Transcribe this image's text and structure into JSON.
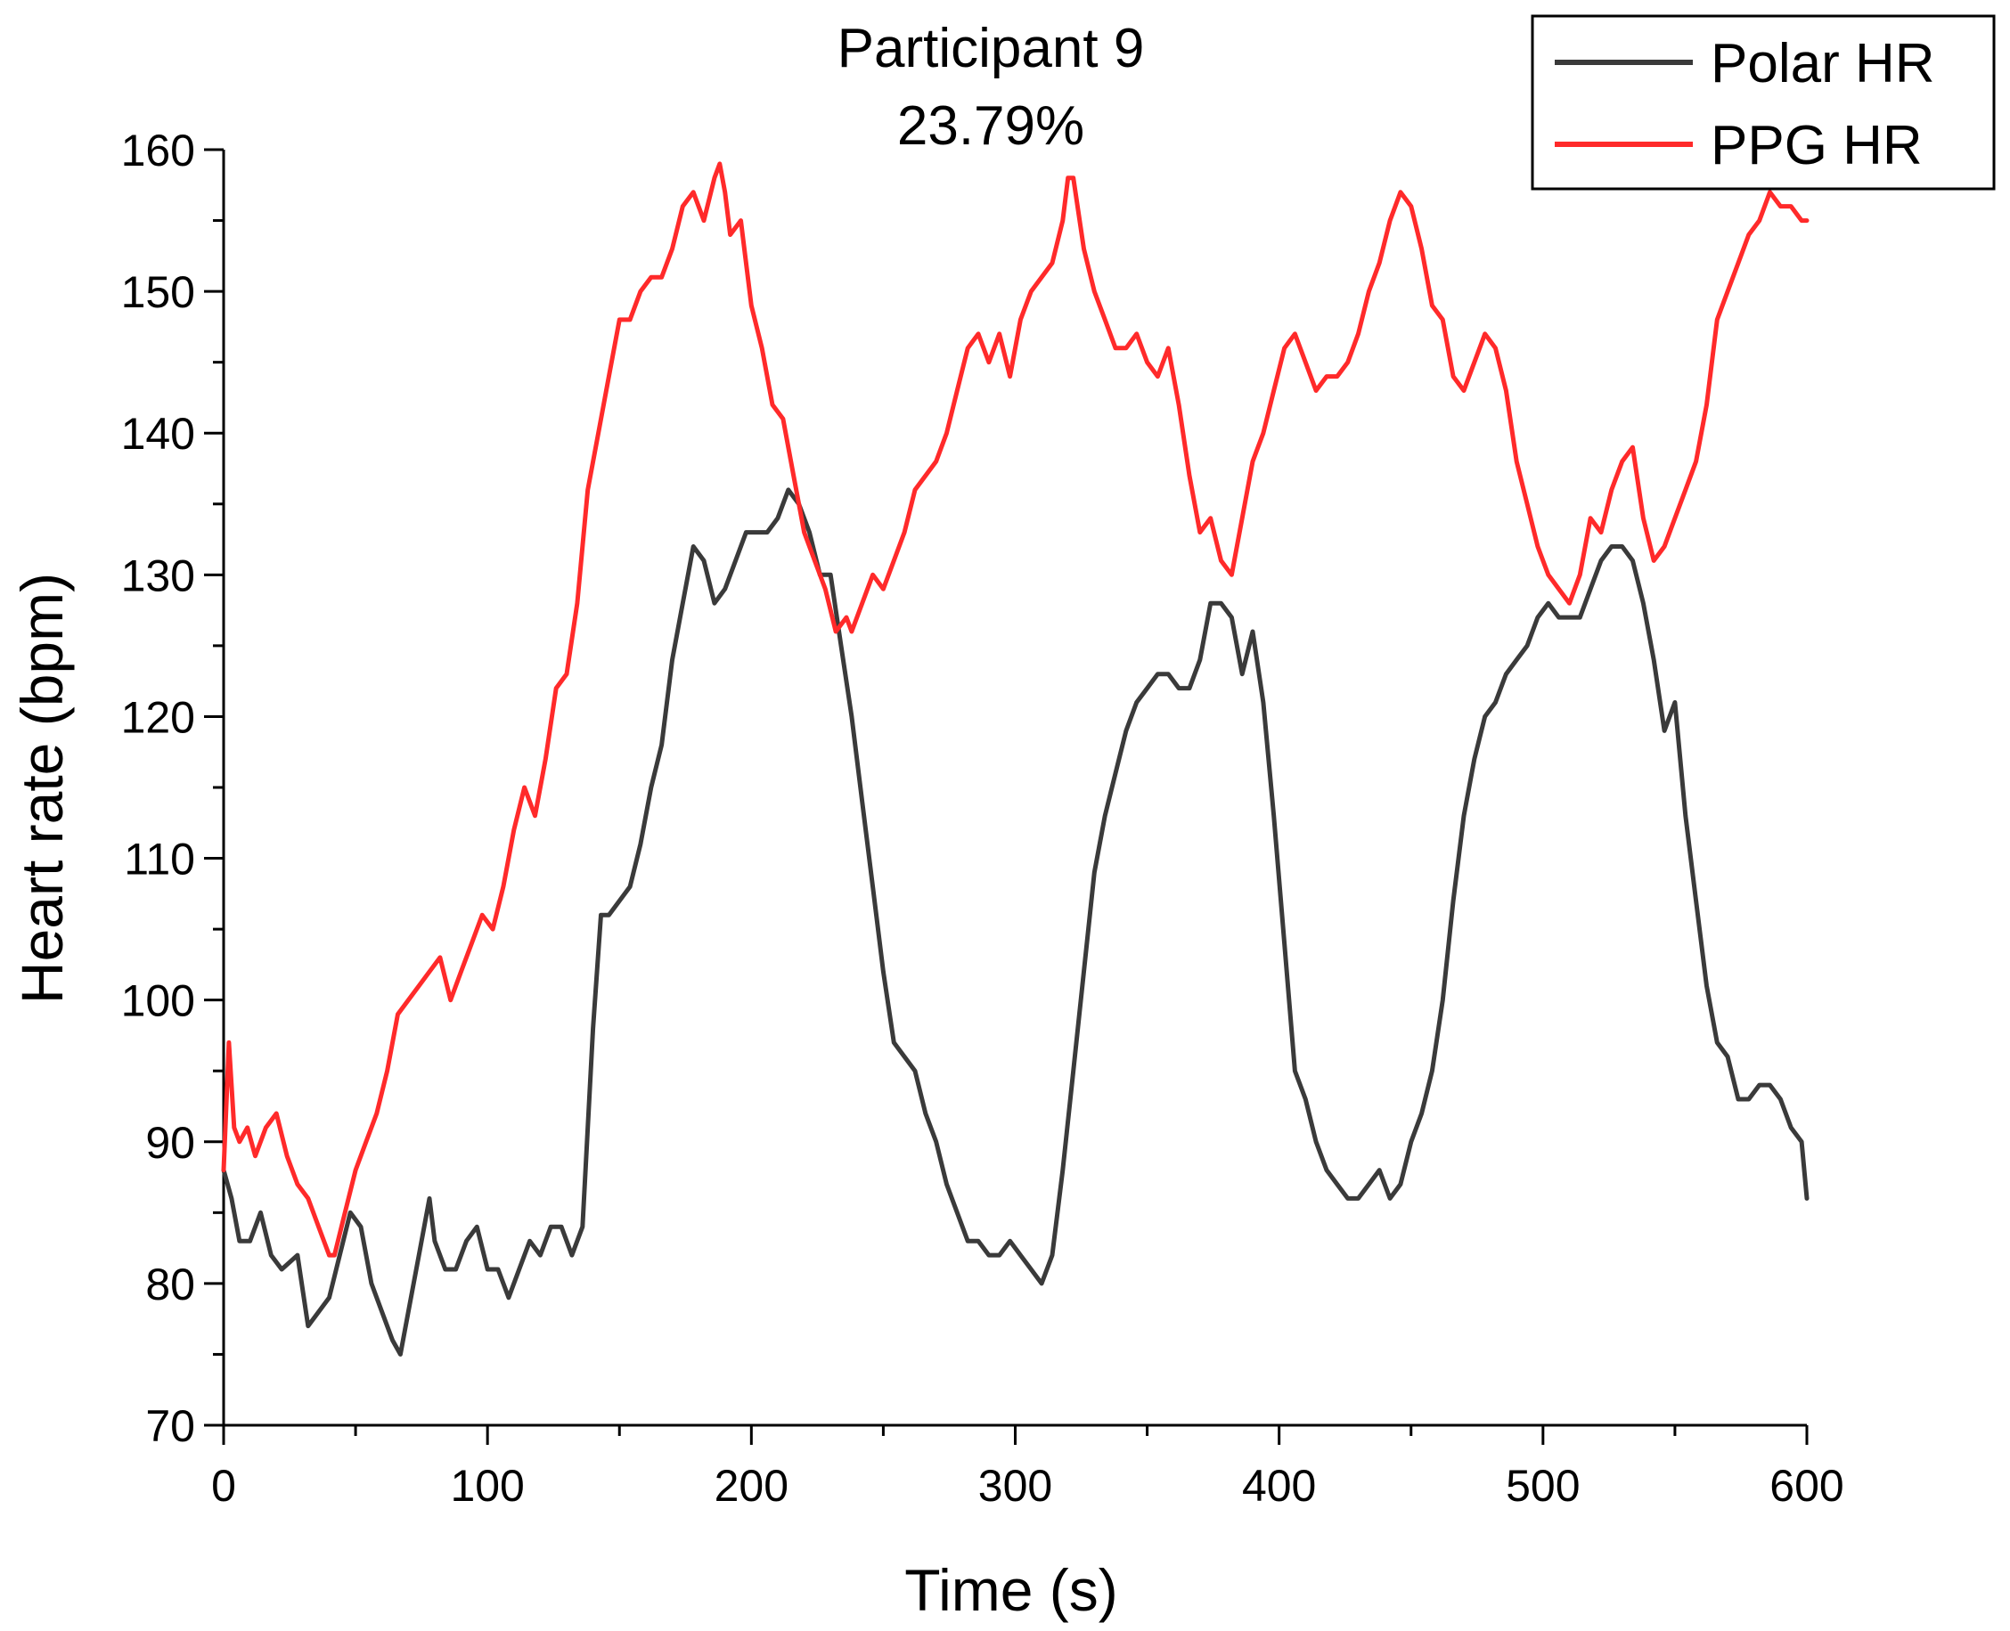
{
  "chart_data": {
    "type": "line",
    "title": "Participant 9",
    "subtitle": "23.79%",
    "xlabel": "Time (s)",
    "ylabel": "Heart rate (bpm)",
    "xlim": [
      0,
      600
    ],
    "ylim": [
      70,
      160
    ],
    "xticks": [
      0,
      100,
      200,
      300,
      400,
      500,
      600
    ],
    "yticks": [
      70,
      80,
      90,
      100,
      110,
      120,
      130,
      140,
      150,
      160
    ],
    "grid": false,
    "legend_position": "top-right",
    "series": [
      {
        "name": "Polar HR",
        "color": "#3a3a3a",
        "x": [
          0,
          3,
          6,
          10,
          14,
          18,
          22,
          28,
          32,
          36,
          40,
          44,
          48,
          52,
          56,
          60,
          64,
          67,
          70,
          74,
          78,
          80,
          84,
          88,
          92,
          96,
          100,
          104,
          108,
          112,
          116,
          120,
          124,
          128,
          132,
          136,
          140,
          143,
          146,
          150,
          154,
          158,
          162,
          166,
          170,
          174,
          178,
          182,
          186,
          190,
          194,
          198,
          202,
          206,
          210,
          214,
          218,
          222,
          226,
          230,
          234,
          238,
          242,
          246,
          250,
          254,
          258,
          262,
          266,
          270,
          274,
          278,
          282,
          286,
          290,
          294,
          298,
          302,
          306,
          310,
          314,
          318,
          322,
          326,
          330,
          334,
          338,
          342,
          346,
          350,
          354,
          358,
          362,
          366,
          370,
          374,
          378,
          382,
          386,
          390,
          394,
          398,
          402,
          406,
          410,
          414,
          418,
          422,
          426,
          430,
          434,
          438,
          442,
          446,
          450,
          454,
          458,
          462,
          466,
          470,
          474,
          478,
          482,
          486,
          490,
          494,
          498,
          502,
          506,
          510,
          514,
          518,
          522,
          526,
          530,
          534,
          538,
          542,
          546,
          550,
          554,
          558,
          562,
          566,
          570,
          574,
          578,
          582,
          586,
          590,
          594,
          598,
          600
        ],
        "values": [
          88,
          86,
          83,
          83,
          85,
          82,
          81,
          82,
          77,
          78,
          79,
          82,
          85,
          84,
          80,
          78,
          76,
          75,
          78,
          82,
          86,
          83,
          81,
          81,
          83,
          84,
          81,
          81,
          79,
          81,
          83,
          82,
          84,
          84,
          82,
          84,
          98,
          106,
          106,
          107,
          108,
          111,
          115,
          118,
          124,
          128,
          132,
          131,
          128,
          129,
          131,
          133,
          133,
          133,
          134,
          136,
          135,
          133,
          130,
          130,
          125,
          120,
          114,
          108,
          102,
          97,
          96,
          95,
          92,
          90,
          87,
          85,
          83,
          83,
          82,
          82,
          83,
          82,
          81,
          80,
          82,
          88,
          95,
          102,
          109,
          113,
          116,
          119,
          121,
          122,
          123,
          123,
          122,
          122,
          124,
          128,
          128,
          127,
          123,
          126,
          121,
          113,
          104,
          95,
          93,
          90,
          88,
          87,
          86,
          86,
          87,
          88,
          86,
          87,
          90,
          92,
          95,
          100,
          107,
          113,
          117,
          120,
          121,
          123,
          124,
          125,
          127,
          128,
          127,
          127,
          127,
          129,
          131,
          132,
          132,
          131,
          128,
          124,
          119,
          121,
          113,
          107,
          101,
          97,
          96,
          93,
          93,
          94,
          94,
          93,
          91,
          90,
          86
        ]
      },
      {
        "name": "PPG HR",
        "color": "#ff2a2a",
        "x": [
          0,
          2,
          4,
          6,
          9,
          12,
          16,
          20,
          24,
          28,
          32,
          36,
          40,
          42,
          46,
          50,
          54,
          58,
          62,
          66,
          70,
          74,
          78,
          82,
          86,
          90,
          94,
          98,
          102,
          106,
          110,
          114,
          118,
          122,
          126,
          130,
          134,
          138,
          142,
          146,
          150,
          154,
          158,
          162,
          166,
          170,
          174,
          178,
          182,
          186,
          188,
          190,
          192,
          196,
          200,
          204,
          208,
          212,
          216,
          220,
          224,
          228,
          232,
          236,
          238,
          242,
          246,
          250,
          254,
          258,
          262,
          266,
          270,
          274,
          278,
          282,
          286,
          290,
          294,
          298,
          302,
          306,
          310,
          314,
          318,
          320,
          322,
          326,
          330,
          334,
          338,
          342,
          346,
          350,
          354,
          358,
          362,
          366,
          370,
          374,
          378,
          382,
          386,
          390,
          394,
          398,
          402,
          406,
          410,
          414,
          418,
          422,
          426,
          430,
          434,
          438,
          442,
          446,
          450,
          454,
          458,
          462,
          466,
          470,
          474,
          478,
          482,
          486,
          490,
          494,
          498,
          502,
          506,
          510,
          514,
          518,
          522,
          526,
          530,
          534,
          538,
          542,
          546,
          550,
          554,
          558,
          562,
          566,
          570,
          574,
          578,
          582,
          586,
          590,
          594,
          598,
          600
        ],
        "values": [
          88,
          97,
          91,
          90,
          91,
          89,
          91,
          92,
          89,
          87,
          86,
          84,
          82,
          82,
          85,
          88,
          90,
          92,
          95,
          99,
          100,
          101,
          102,
          103,
          100,
          102,
          104,
          106,
          105,
          108,
          112,
          115,
          113,
          117,
          122,
          123,
          128,
          136,
          140,
          144,
          148,
          148,
          150,
          151,
          151,
          153,
          156,
          157,
          155,
          158,
          159,
          157,
          154,
          155,
          149,
          146,
          142,
          141,
          137,
          133,
          131,
          129,
          126,
          127,
          126,
          128,
          130,
          129,
          131,
          133,
          136,
          137,
          138,
          140,
          143,
          146,
          147,
          145,
          147,
          144,
          148,
          150,
          151,
          152,
          155,
          158,
          158,
          153,
          150,
          148,
          146,
          146,
          147,
          145,
          144,
          146,
          142,
          137,
          133,
          134,
          131,
          130,
          134,
          138,
          140,
          143,
          146,
          147,
          145,
          143,
          144,
          144,
          145,
          147,
          150,
          152,
          155,
          157,
          156,
          153,
          149,
          148,
          144,
          143,
          145,
          147,
          146,
          143,
          138,
          135,
          132,
          130,
          129,
          128,
          130,
          134,
          133,
          136,
          138,
          139,
          134,
          131,
          132,
          134,
          136,
          138,
          142,
          148,
          150,
          152,
          154,
          155,
          157,
          156,
          156,
          155,
          155
        ]
      }
    ]
  }
}
